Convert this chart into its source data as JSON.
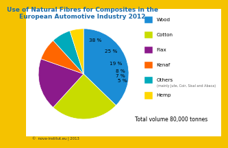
{
  "title": "Use of Natural Fibres for Composites in the\nEuropean Automotive Industry 2012",
  "title_color": "#1B6AAA",
  "background_color": "#F5C200",
  "inner_bg": "#FFFFFF",
  "labels": [
    "Wood",
    "Cotton",
    "Flax",
    "Kenaf",
    "Others",
    "Hemp"
  ],
  "pct_labels": [
    "38 %",
    "25 %",
    "19 %",
    "8 %",
    "7 %",
    "5 %"
  ],
  "values": [
    38,
    25,
    19,
    8,
    7,
    5
  ],
  "colors": [
    "#1B8DD6",
    "#C8DC00",
    "#8B1A8B",
    "#FF6600",
    "#00AABB",
    "#FFD700"
  ],
  "legend_subtitle": "(mainly Jute, Coir, Sisal and Abaca)",
  "total_text": "Total volume 80,000 tonnes",
  "footer_text": "©  nova-institut.eu | 2013",
  "startangle": 90
}
